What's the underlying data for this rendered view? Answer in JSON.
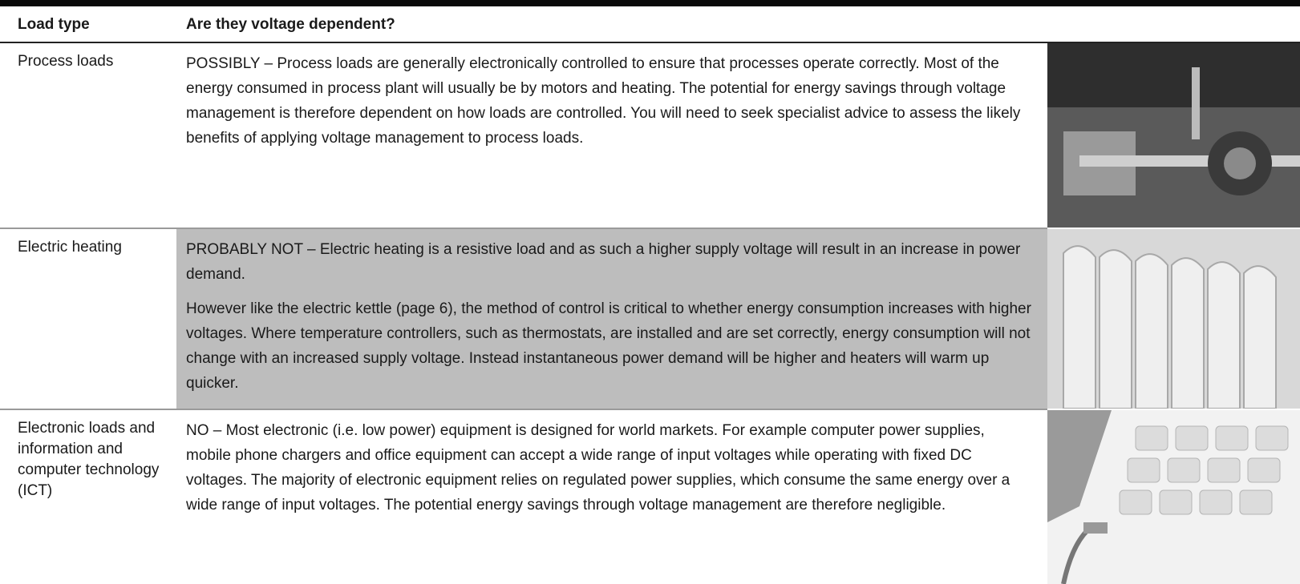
{
  "table": {
    "header": [
      "Load type",
      "Are they voltage dependent?"
    ],
    "rows": [
      {
        "load_type": "Process loads",
        "keyword": "POSSIBLY",
        "paragraphs": [
          "– Process loads are generally electronically controlled to ensure that processes operate correctly. Most of the energy consumed in process plant will usually be by motors and heating. The potential for energy savings through voltage management is therefore dependent on how loads are controlled. You will need to seek specialist advice to assess the likely benefits of applying voltage management to process loads."
        ]
      },
      {
        "load_type": "Electric heating",
        "keyword": "PROBABLY NOT",
        "paragraphs": [
          "– Electric heating is a resistive load and as such a higher supply voltage will result in an increase in power demand.",
          "However like the electric kettle (page 6), the method of control is critical to whether energy consumption increases with higher voltages. Where temperature controllers, such as thermostats, are installed and are set correctly, energy consumption will not change with an increased supply voltage. Instead instantaneous power demand will be higher and heaters will warm up quicker."
        ]
      },
      {
        "load_type": "Electronic loads and information and computer technology (ICT)",
        "keyword": "NO",
        "paragraphs": [
          "– Most electronic (i.e. low power) equipment is designed for world markets. For example computer power supplies, mobile phone chargers and office equipment can accept a wide range of input voltages while operating with fixed DC voltages. The majority of electronic equipment relies on regulated power supplies, which consume the same energy over a wide range of input voltages. The potential energy savings through voltage management are therefore negligible."
        ]
      }
    ]
  }
}
